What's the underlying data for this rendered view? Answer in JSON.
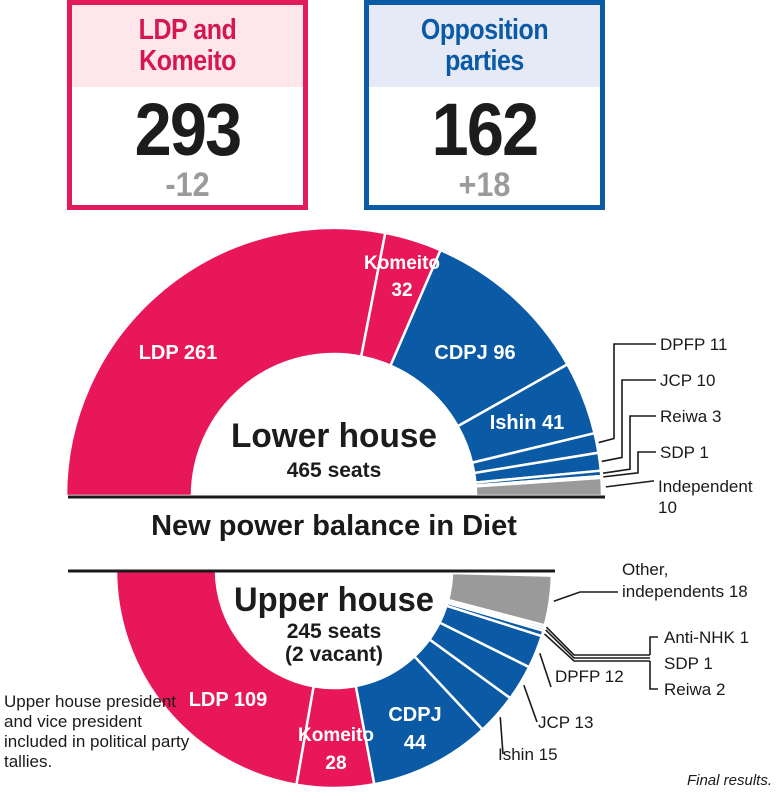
{
  "summary": {
    "ruling": {
      "label": "LDP and Komeito",
      "line1": "LDP and",
      "line2": "Komeito",
      "seats": "293",
      "change": "-12"
    },
    "opposition": {
      "label": "Opposition parties",
      "line1": "Opposition",
      "line2": "parties",
      "seats": "162",
      "change": "+18"
    }
  },
  "title": "New power balance in Diet",
  "note": "Upper house president and vice president included in political party tallies.",
  "footer": "Final results.",
  "colors": {
    "ruling": "#e8175a",
    "opposition": "#0b5aa6",
    "other": "#9a9a9a",
    "ruling_box": "#e21b5a",
    "opposition_box": "#0b5aa6"
  },
  "chart_data": [
    {
      "type": "pie",
      "subtype": "half-donut",
      "title": "Lower house",
      "subtitle": "465 seats",
      "total": 465,
      "slices": [
        {
          "name": "LDP",
          "label": "LDP 261",
          "value": 261,
          "group": "ruling"
        },
        {
          "name": "Komeito",
          "label": "Komeito 32",
          "value": 32,
          "group": "ruling"
        },
        {
          "name": "CDPJ",
          "label": "CDPJ 96",
          "value": 96,
          "group": "opposition"
        },
        {
          "name": "Ishin",
          "label": "Ishin 41",
          "value": 41,
          "group": "opposition"
        },
        {
          "name": "DPFP",
          "label": "DPFP 11",
          "value": 11,
          "group": "opposition"
        },
        {
          "name": "JCP",
          "label": "JCP 10",
          "value": 10,
          "group": "opposition"
        },
        {
          "name": "Reiwa",
          "label": "Reiwa 3",
          "value": 3,
          "group": "opposition"
        },
        {
          "name": "SDP",
          "label": "SDP 1",
          "value": 1,
          "group": "opposition"
        },
        {
          "name": "Independent",
          "label": "Independent 10",
          "value": 10,
          "group": "other"
        }
      ]
    },
    {
      "type": "pie",
      "subtype": "half-donut",
      "title": "Upper house",
      "subtitle": "245 seats",
      "subtitle2": "(2 vacant)",
      "total": 245,
      "vacant": 2,
      "slices": [
        {
          "name": "LDP",
          "label": "LDP 109",
          "value": 109,
          "group": "ruling"
        },
        {
          "name": "Komeito",
          "label": "Komeito 28",
          "value": 28,
          "group": "ruling"
        },
        {
          "name": "CDPJ",
          "label": "CDPJ 44",
          "value": 44,
          "group": "opposition"
        },
        {
          "name": "Ishin",
          "label": "Ishin 15",
          "value": 15,
          "group": "opposition"
        },
        {
          "name": "JCP",
          "label": "JCP 13",
          "value": 13,
          "group": "opposition"
        },
        {
          "name": "DPFP",
          "label": "DPFP 12",
          "value": 12,
          "group": "opposition"
        },
        {
          "name": "Reiwa",
          "label": "Reiwa 2",
          "value": 2,
          "group": "opposition"
        },
        {
          "name": "SDP",
          "label": "SDP 1",
          "value": 1,
          "group": "opposition"
        },
        {
          "name": "Anti-NHK",
          "label": "Anti-NHK 1",
          "value": 1,
          "group": "opposition"
        },
        {
          "name": "Other",
          "label": "Other, independents 18",
          "value": 18,
          "group": "other"
        }
      ]
    }
  ]
}
